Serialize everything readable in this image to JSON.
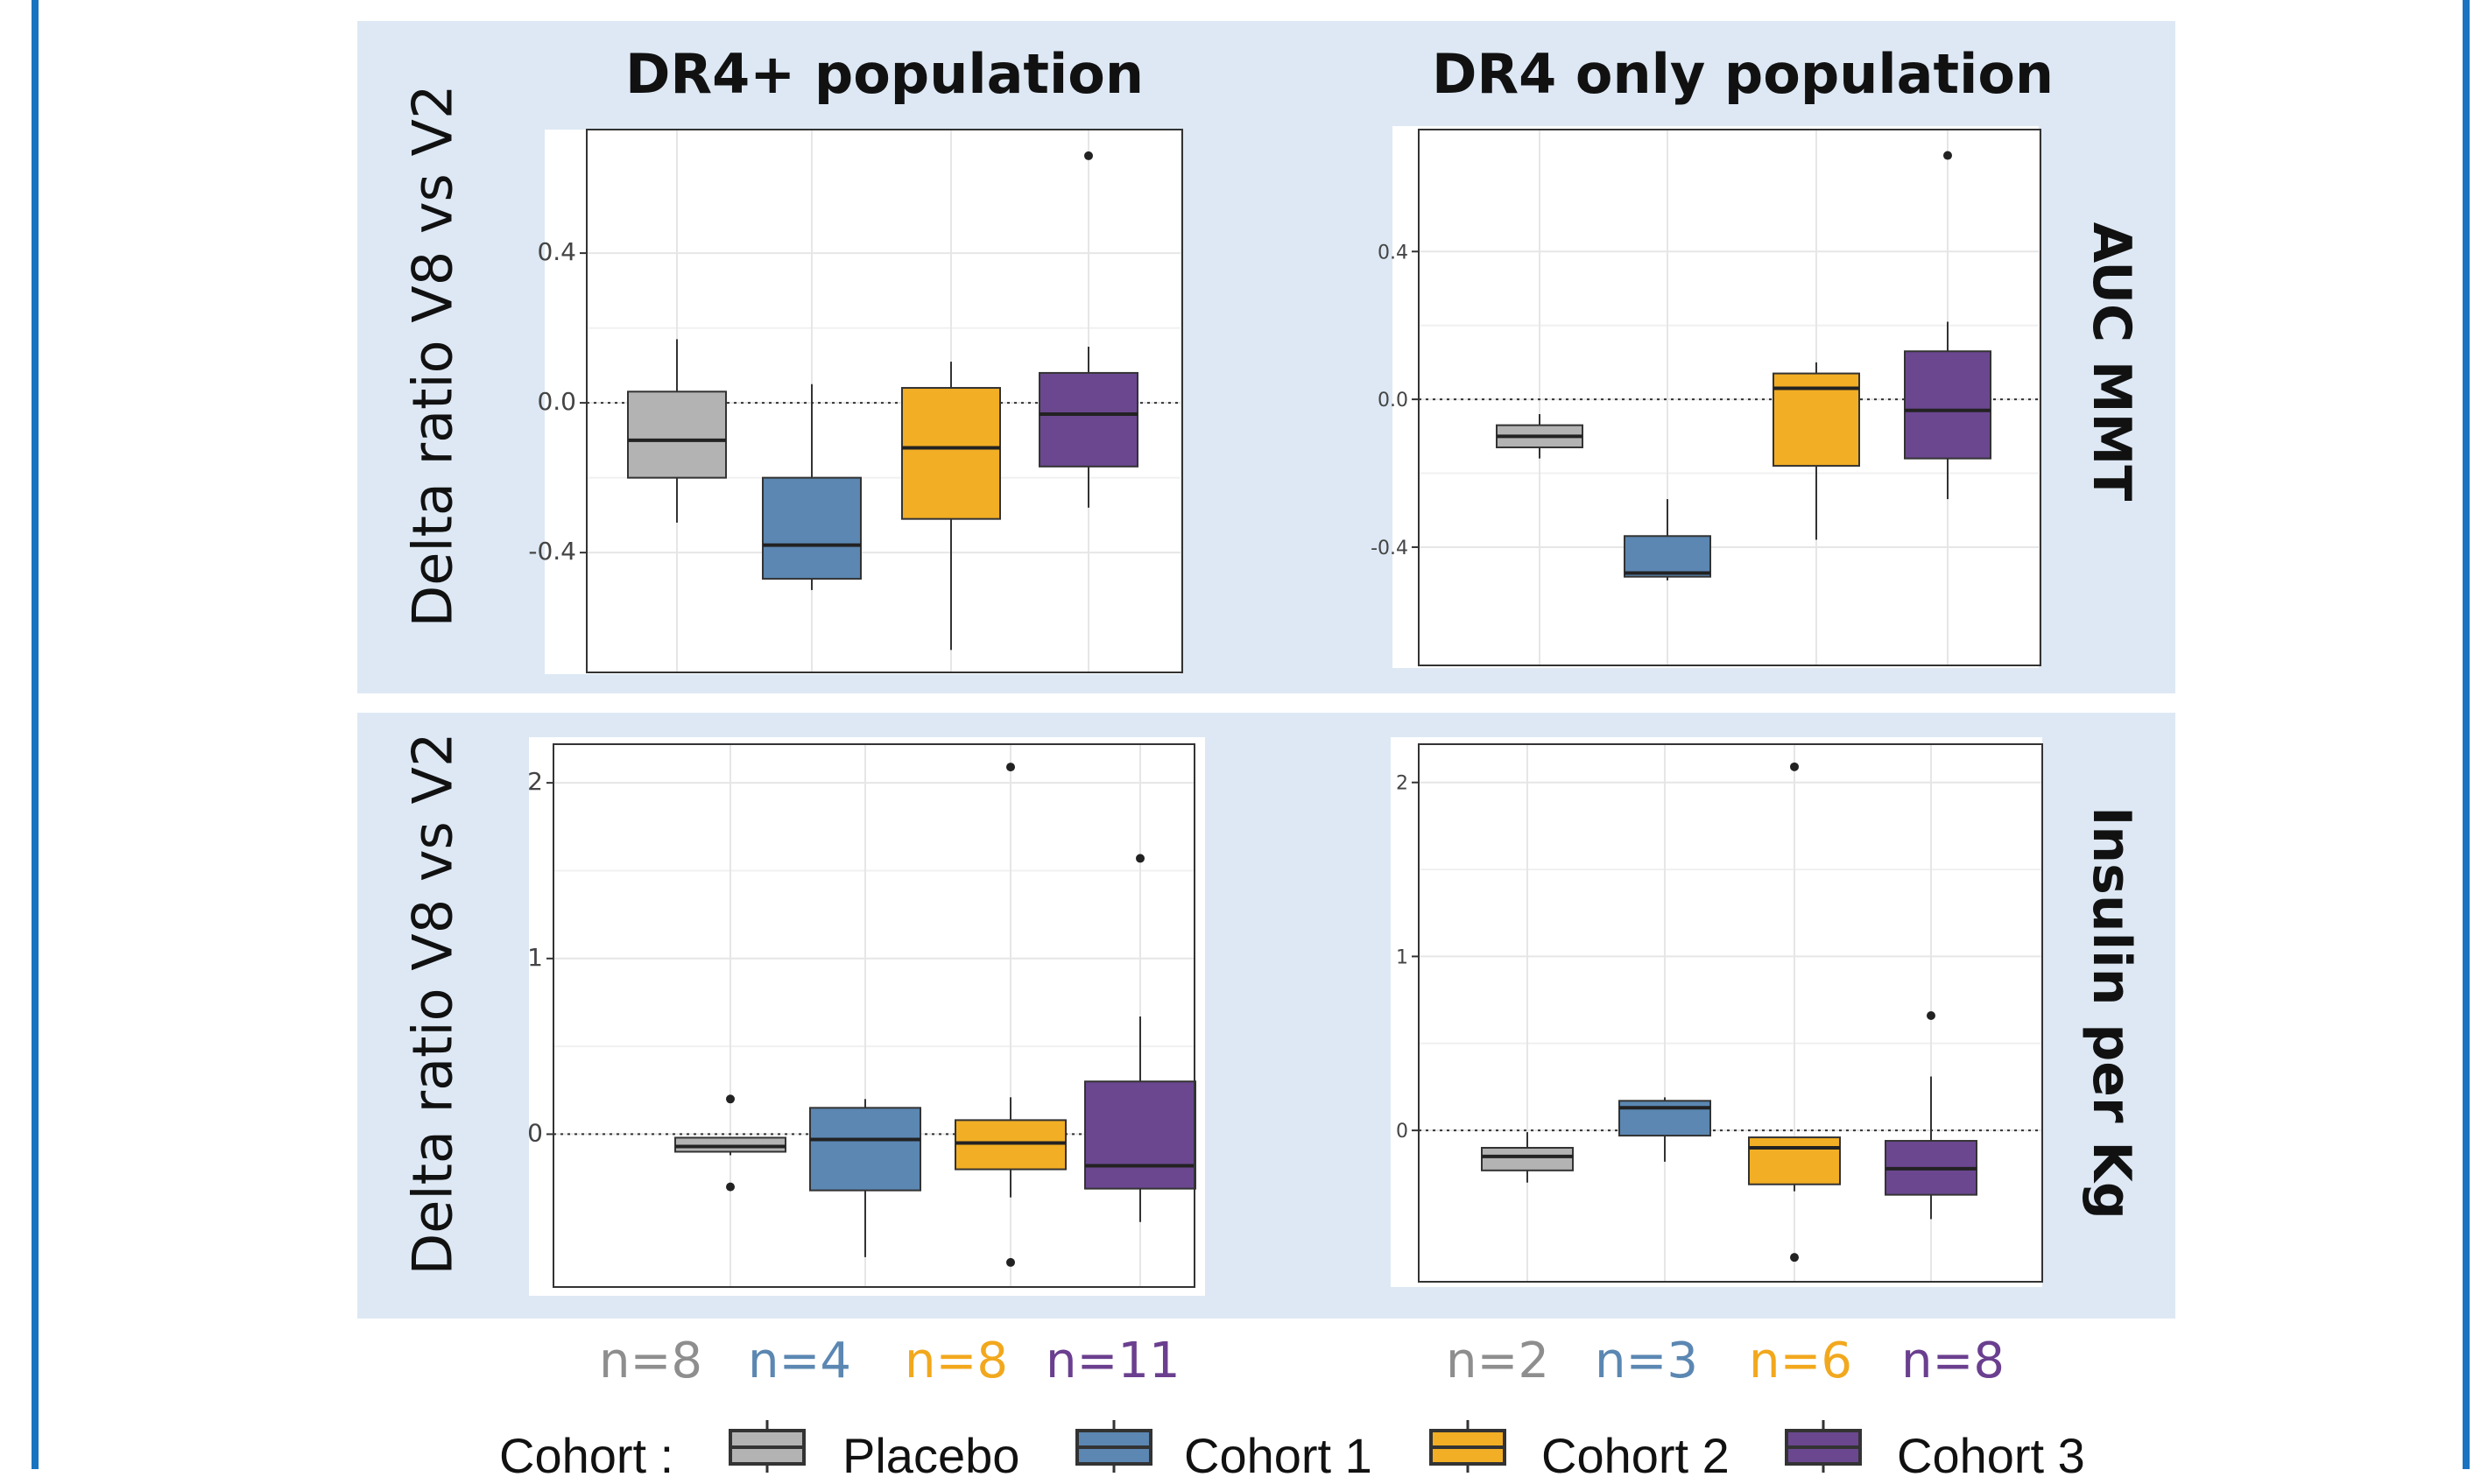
{
  "columns": [
    "DR4+ population",
    "DR4 only population"
  ],
  "rows": [
    {
      "ylabel": "Delta ratio V8 vs V2",
      "label": "AUC MMT"
    },
    {
      "ylabel": "Delta ratio V8 vs V2",
      "label": "Insulin per Kg"
    }
  ],
  "counts": [
    [
      {
        "text": "n=8",
        "color": "#8e8e8e"
      },
      {
        "text": "n=4",
        "color": "#5b87b2"
      },
      {
        "text": "n=8",
        "color": "#f2a81d"
      },
      {
        "text": "n=11",
        "color": "#6b3f8f"
      }
    ],
    [
      {
        "text": "n=2",
        "color": "#8e8e8e"
      },
      {
        "text": "n=3",
        "color": "#5b87b2"
      },
      {
        "text": "n=6",
        "color": "#f2a81d"
      },
      {
        "text": "n=8",
        "color": "#6b3f8f"
      }
    ]
  ],
  "legend": {
    "title": "Cohort :",
    "items": [
      {
        "label": "Placebo",
        "color": "#b3b3b3"
      },
      {
        "label": "Cohort 1",
        "color": "#5b87b2"
      },
      {
        "label": "Cohort 2",
        "color": "#f2ae24"
      },
      {
        "label": "Cohort 3",
        "color": "#6b4790"
      }
    ]
  },
  "chart_data": [
    {
      "type": "boxplot",
      "column": "DR4+ population",
      "row": "AUC MMT",
      "categories": [
        "Placebo",
        "Cohort 1",
        "Cohort 2",
        "Cohort 3"
      ],
      "ylim": [
        -0.72,
        0.73
      ],
      "yticks": [
        -0.4,
        0.0,
        0.4
      ],
      "ytick_labels": [
        "-0.4",
        "0.0",
        "0.4"
      ],
      "reference_line": 0,
      "boxes": [
        {
          "q1": -0.2,
          "median": -0.1,
          "q3": 0.03,
          "whisker_low": -0.32,
          "whisker_high": 0.17,
          "outliers": []
        },
        {
          "q1": -0.47,
          "median": -0.38,
          "q3": -0.2,
          "whisker_low": -0.5,
          "whisker_high": 0.05,
          "outliers": []
        },
        {
          "q1": -0.31,
          "median": -0.12,
          "q3": 0.04,
          "whisker_low": -0.66,
          "whisker_high": 0.11,
          "outliers": []
        },
        {
          "q1": -0.17,
          "median": -0.03,
          "q3": 0.08,
          "whisker_low": -0.28,
          "whisker_high": 0.15,
          "outliers": [
            0.66
          ]
        }
      ]
    },
    {
      "type": "boxplot",
      "column": "DR4 only population",
      "row": "AUC MMT",
      "categories": [
        "Placebo",
        "Cohort 1",
        "Cohort 2",
        "Cohort 3"
      ],
      "ylim": [
        -0.72,
        0.73
      ],
      "yticks": [
        -0.4,
        0.0,
        0.4
      ],
      "ytick_labels": [
        "-0.4",
        "0.0",
        "0.4"
      ],
      "reference_line": 0,
      "boxes": [
        {
          "q1": -0.13,
          "median": -0.1,
          "q3": -0.07,
          "whisker_low": -0.16,
          "whisker_high": -0.04,
          "outliers": []
        },
        {
          "q1": -0.48,
          "median": -0.47,
          "q3": -0.37,
          "whisker_low": -0.49,
          "whisker_high": -0.27,
          "outliers": []
        },
        {
          "q1": -0.18,
          "median": 0.03,
          "q3": 0.07,
          "whisker_low": -0.38,
          "whisker_high": 0.1,
          "outliers": []
        },
        {
          "q1": -0.16,
          "median": -0.03,
          "q3": 0.13,
          "whisker_low": -0.27,
          "whisker_high": 0.21,
          "outliers": [
            0.66
          ]
        }
      ]
    },
    {
      "type": "boxplot",
      "column": "DR4+ population",
      "row": "Insulin per Kg",
      "categories": [
        "Placebo",
        "Cohort 1",
        "Cohort 2",
        "Cohort 3"
      ],
      "ylim": [
        -0.87,
        2.22
      ],
      "yticks": [
        0,
        1,
        2
      ],
      "ytick_labels": [
        "0",
        "1",
        "2"
      ],
      "reference_line": 0,
      "boxes": [
        {
          "q1": -0.1,
          "median": -0.07,
          "q3": -0.02,
          "whisker_low": -0.12,
          "whisker_high": -0.02,
          "outliers": [
            0.2,
            -0.3
          ]
        },
        {
          "q1": -0.32,
          "median": -0.03,
          "q3": 0.15,
          "whisker_low": -0.7,
          "whisker_high": 0.2,
          "outliers": []
        },
        {
          "q1": -0.2,
          "median": -0.05,
          "q3": 0.08,
          "whisker_low": -0.36,
          "whisker_high": 0.21,
          "outliers": [
            2.09,
            -0.73
          ]
        },
        {
          "q1": -0.31,
          "median": -0.18,
          "q3": 0.3,
          "whisker_low": -0.5,
          "whisker_high": 0.67,
          "outliers": [
            1.57
          ]
        }
      ]
    },
    {
      "type": "boxplot",
      "column": "DR4 only population",
      "row": "Insulin per Kg",
      "categories": [
        "Placebo",
        "Cohort 1",
        "Cohort 2",
        "Cohort 3"
      ],
      "ylim": [
        -0.87,
        2.22
      ],
      "yticks": [
        0,
        1,
        2
      ],
      "ytick_labels": [
        "0",
        "1",
        "2"
      ],
      "reference_line": 0,
      "boxes": [
        {
          "q1": -0.23,
          "median": -0.15,
          "q3": -0.1,
          "whisker_low": -0.3,
          "whisker_high": -0.01,
          "outliers": []
        },
        {
          "q1": -0.03,
          "median": 0.13,
          "q3": 0.17,
          "whisker_low": -0.18,
          "whisker_high": 0.19,
          "outliers": []
        },
        {
          "q1": -0.31,
          "median": -0.1,
          "q3": -0.04,
          "whisker_low": -0.35,
          "whisker_high": -0.04,
          "outliers": [
            2.09,
            -0.73
          ]
        },
        {
          "q1": -0.37,
          "median": -0.22,
          "q3": -0.06,
          "whisker_low": -0.51,
          "whisker_high": 0.31,
          "outliers": [
            0.66
          ]
        }
      ]
    }
  ]
}
